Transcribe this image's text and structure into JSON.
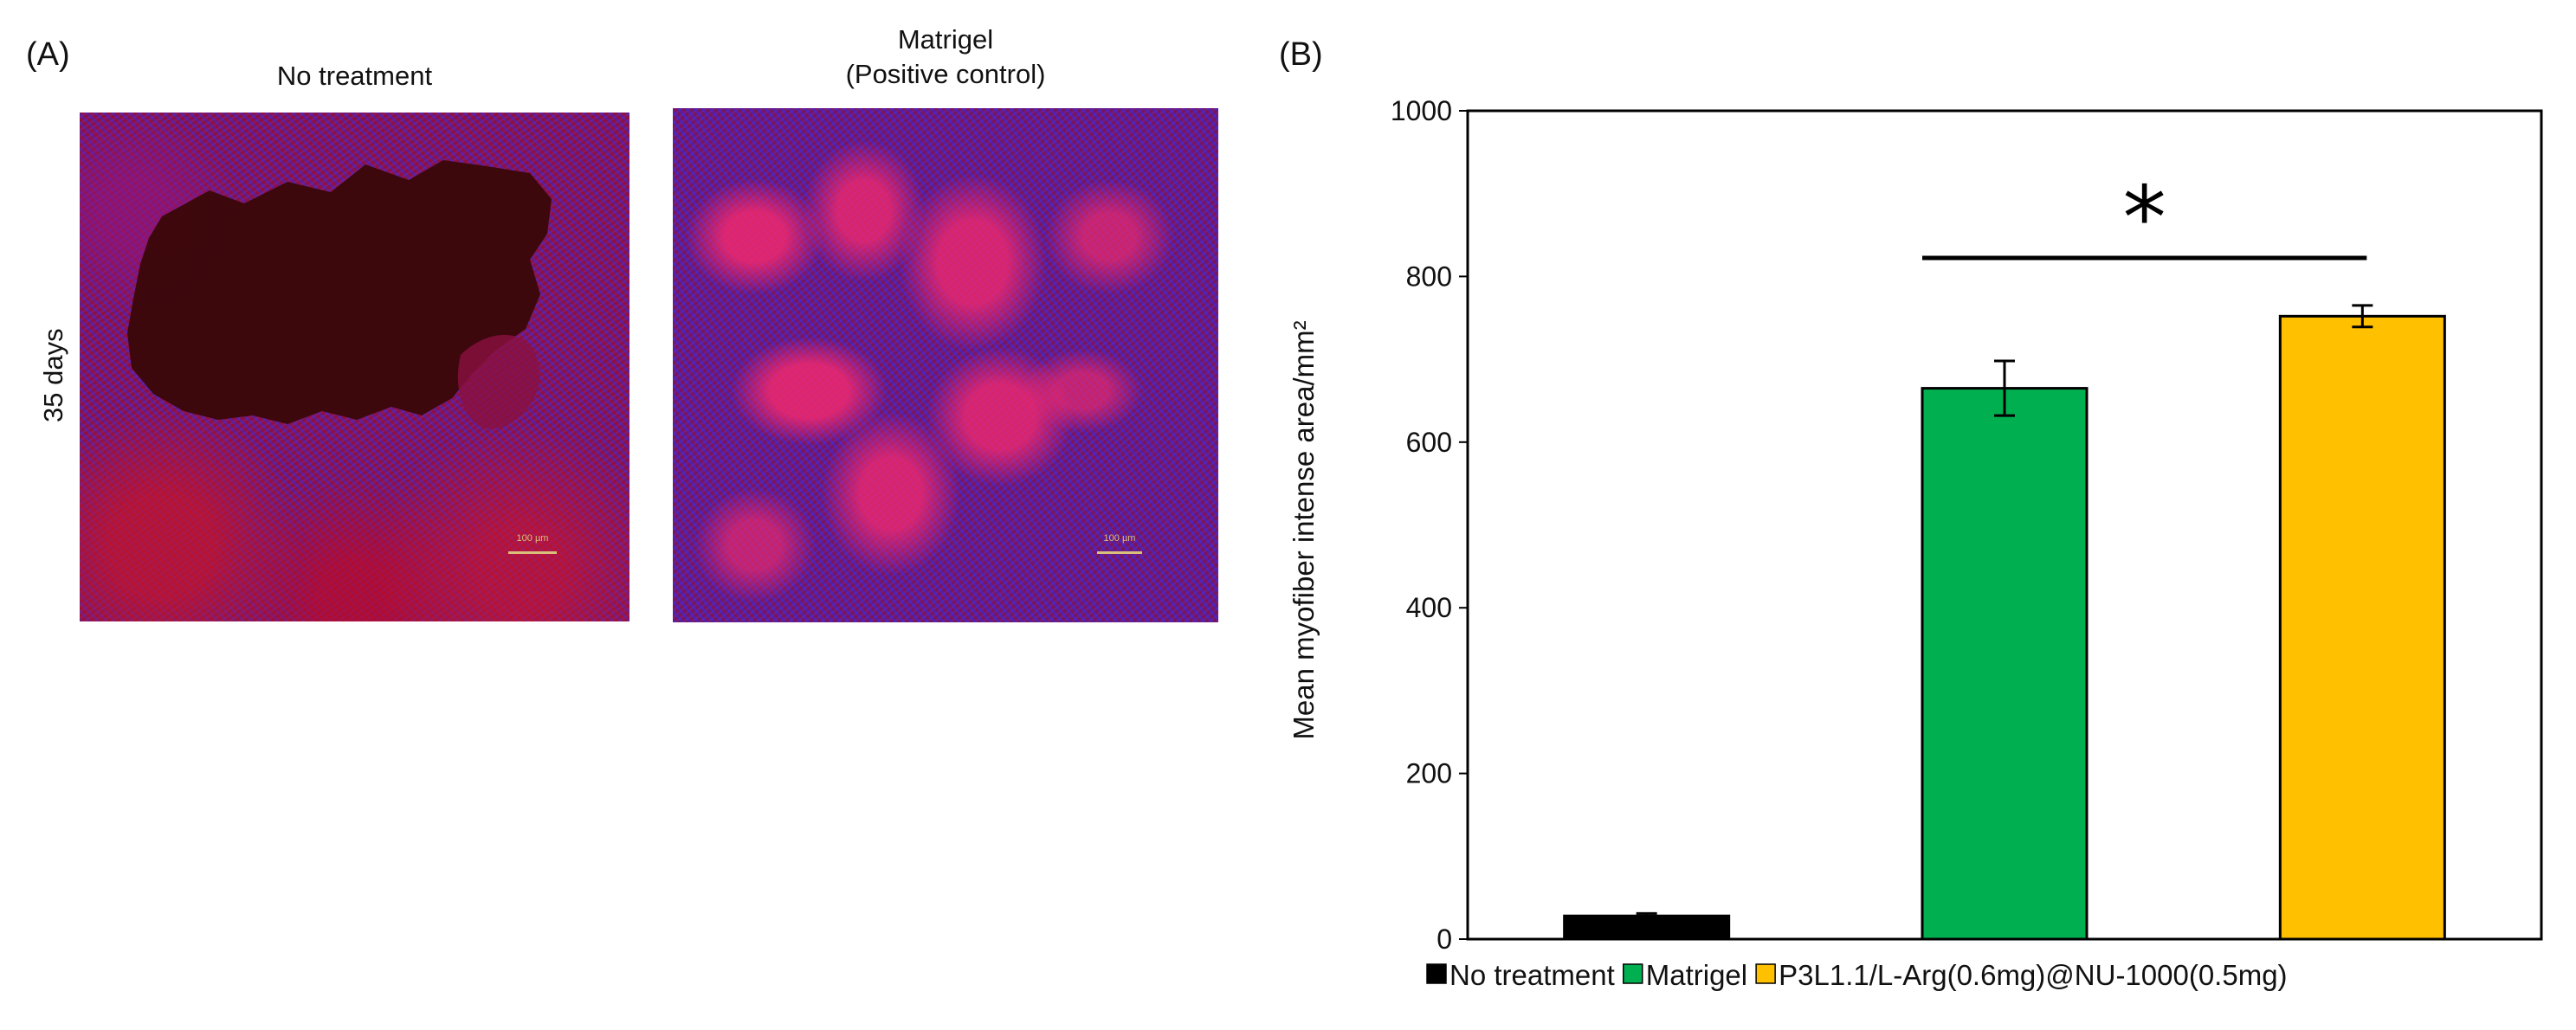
{
  "panel_a": {
    "label": "(A)",
    "row_label": "35 days",
    "images": [
      {
        "title_lines": [
          "No treatment"
        ],
        "scale_text": "100 µm"
      },
      {
        "title_lines": [
          "Matrigel",
          "(Positive control)"
        ],
        "scale_text": "100 µm"
      }
    ]
  },
  "panel_b": {
    "label": "(B)"
  },
  "chart_data": {
    "type": "bar",
    "ylabel": "Mean myofiber intense area/mm²",
    "ylim": [
      0,
      1000
    ],
    "yticks": [
      0,
      200,
      400,
      600,
      800,
      1000
    ],
    "categories": [
      "No treatment",
      "Matrigel",
      "P3L1.1/L-Arg(0.6mg)@NU-1000(0.5mg)"
    ],
    "values": [
      28,
      665,
      752
    ],
    "errors": [
      3,
      33,
      13
    ],
    "colors": [
      "#000000",
      "#00b050",
      "#ffc000"
    ],
    "legend_position": "bottom",
    "significance": {
      "from": 1,
      "to": 2,
      "label": "*"
    }
  }
}
